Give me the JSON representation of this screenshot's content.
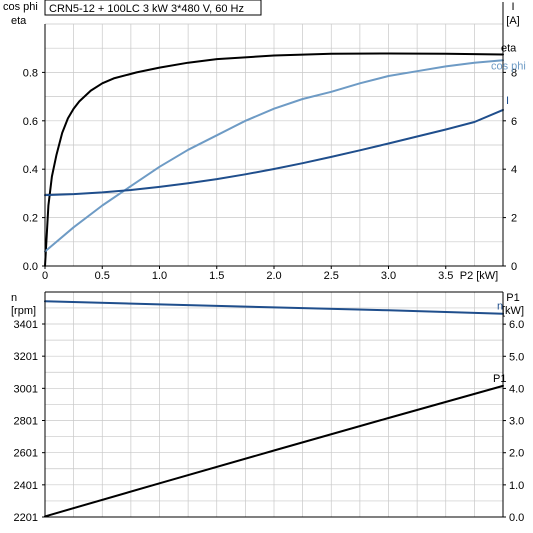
{
  "chart_data": [
    {
      "type": "line",
      "title": "CRN5-12 + 100LC   3 kW   3*480 V, 60 Hz",
      "xlabel": "P2 [kW]",
      "ylabel_left": [
        "cos phi",
        "eta"
      ],
      "ylabel_right": [
        "I",
        "[A]"
      ],
      "xlim": [
        0,
        4.0
      ],
      "ylim_left": [
        0,
        1.0
      ],
      "ylim_right": [
        0,
        10
      ],
      "x_ticks": [
        "0",
        "0.5",
        "1.0",
        "1.5",
        "2.0",
        "2.5",
        "3.0",
        "3.5"
      ],
      "y_left_ticks": [
        "0.0",
        "0.2",
        "0.4",
        "0.6",
        "0.8"
      ],
      "y_right_ticks": [
        "0",
        "2",
        "4",
        "6",
        "8"
      ],
      "grid": true,
      "series": [
        {
          "name": "eta",
          "axis": "left",
          "color": "#000000",
          "x": [
            0,
            0.03,
            0.06,
            0.1,
            0.15,
            0.2,
            0.25,
            0.3,
            0.4,
            0.5,
            0.6,
            0.8,
            1.0,
            1.25,
            1.5,
            2.0,
            2.5,
            3.0,
            3.5,
            4.0
          ],
          "y": [
            0,
            0.25,
            0.37,
            0.46,
            0.55,
            0.61,
            0.65,
            0.68,
            0.725,
            0.755,
            0.775,
            0.8,
            0.82,
            0.84,
            0.855,
            0.87,
            0.877,
            0.878,
            0.877,
            0.874
          ]
        },
        {
          "name": "cos phi",
          "axis": "left",
          "color": "#6e9bc5",
          "x": [
            0,
            0.25,
            0.5,
            0.75,
            1.0,
            1.25,
            1.5,
            1.75,
            2.0,
            2.25,
            2.5,
            2.75,
            3.0,
            3.25,
            3.5,
            3.75,
            4.0
          ],
          "y": [
            0.06,
            0.16,
            0.25,
            0.33,
            0.41,
            0.48,
            0.54,
            0.6,
            0.65,
            0.69,
            0.72,
            0.755,
            0.785,
            0.805,
            0.825,
            0.84,
            0.85
          ]
        },
        {
          "name": "I",
          "axis": "right",
          "color": "#1f4e8c",
          "x": [
            0,
            0.25,
            0.5,
            0.75,
            1.0,
            1.25,
            1.5,
            1.75,
            2.0,
            2.25,
            2.5,
            2.75,
            3.0,
            3.25,
            3.5,
            3.75,
            4.0
          ],
          "y": [
            2.93,
            2.97,
            3.04,
            3.14,
            3.27,
            3.42,
            3.59,
            3.79,
            4.01,
            4.25,
            4.51,
            4.78,
            5.06,
            5.35,
            5.64,
            5.95,
            6.45
          ]
        }
      ]
    },
    {
      "type": "line",
      "xlim": [
        0,
        4.0
      ],
      "ylabel_left": [
        "n",
        "[rpm]"
      ],
      "ylabel_right": [
        "P1",
        "[kW]"
      ],
      "ylim_left": [
        2201,
        3600
      ],
      "ylim_right": [
        0,
        7
      ],
      "y_left_ticks": [
        "2201",
        "2401",
        "2601",
        "2801",
        "3001",
        "3201",
        "3401"
      ],
      "y_right_ticks": [
        "0.0",
        "1.0",
        "2.0",
        "3.0",
        "4.0",
        "5.0",
        "6.0"
      ],
      "grid": true,
      "series": [
        {
          "name": "n",
          "axis": "left",
          "color": "#1f4e8c",
          "x": [
            0,
            1.0,
            2.0,
            3.0,
            4.0
          ],
          "y": [
            3542,
            3523,
            3504,
            3486,
            3465
          ]
        },
        {
          "name": "P1",
          "axis": "right",
          "color": "#000000",
          "x": [
            0,
            1.0,
            2.0,
            3.0,
            4.0
          ],
          "y": [
            0.02,
            1.05,
            2.07,
            3.08,
            4.08
          ]
        }
      ]
    }
  ]
}
